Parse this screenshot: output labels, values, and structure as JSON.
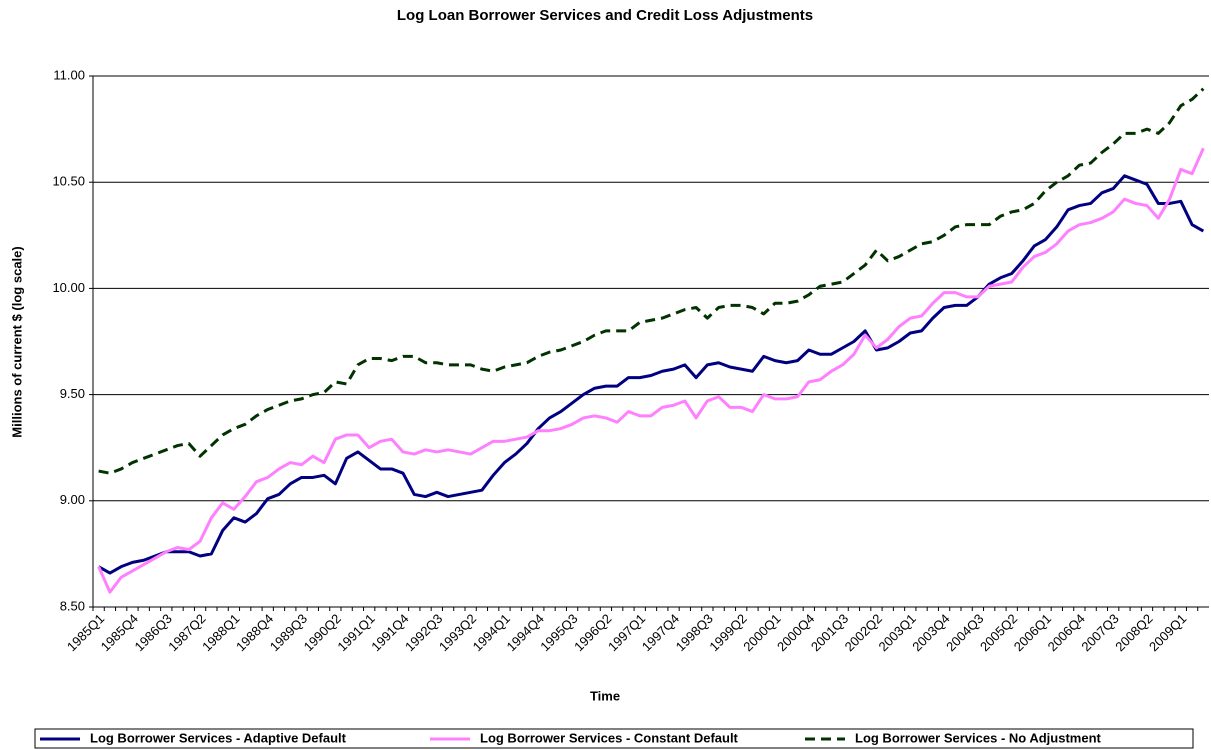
{
  "chart_data": {
    "type": "line",
    "title": "Log Loan Borrower Services and Credit Loss Adjustments",
    "x_label": "Time",
    "y_label": "Millions of current $ (log scale)",
    "categories": [
      "1985Q1",
      null,
      null,
      "1985Q4",
      null,
      null,
      "1986Q3",
      null,
      null,
      "1987Q2",
      null,
      null,
      "1988Q1",
      null,
      null,
      "1988Q4",
      null,
      null,
      "1989Q3",
      null,
      null,
      "1990Q2",
      null,
      null,
      "1991Q1",
      null,
      null,
      "1991Q4",
      null,
      null,
      "1992Q3",
      null,
      null,
      "1993Q2",
      null,
      null,
      "1994Q1",
      null,
      null,
      "1994Q4",
      null,
      null,
      "1995Q3",
      null,
      null,
      "1996Q2",
      null,
      null,
      "1997Q1",
      null,
      null,
      "1997Q4",
      null,
      null,
      "1998Q3",
      null,
      null,
      "1999Q2",
      null,
      null,
      "2000Q1",
      null,
      null,
      "2000Q4",
      null,
      null,
      "2001Q3",
      null,
      null,
      "2002Q2",
      null,
      null,
      "2003Q1",
      null,
      null,
      "2003Q4",
      null,
      null,
      "2004Q3",
      null,
      null,
      "2005Q2",
      null,
      null,
      "2006Q1",
      null,
      null,
      "2006Q4",
      null,
      null,
      "2007Q3",
      null,
      null,
      "2008Q2",
      null,
      null,
      "2009Q1",
      null,
      null
    ],
    "series": [
      {
        "name": "Log Borrower Services - Adaptive Default",
        "color": "#000080",
        "dash": false,
        "values": [
          8.69,
          8.66,
          8.69,
          8.71,
          8.72,
          8.74,
          8.76,
          8.76,
          8.76,
          8.74,
          8.75,
          8.86,
          8.92,
          8.9,
          8.94,
          9.01,
          9.03,
          9.08,
          9.11,
          9.11,
          9.12,
          9.08,
          9.2,
          9.23,
          9.19,
          9.15,
          9.15,
          9.13,
          9.03,
          9.02,
          9.04,
          9.02,
          9.03,
          9.04,
          9.05,
          9.12,
          9.18,
          9.22,
          9.27,
          9.34,
          9.39,
          9.42,
          9.46,
          9.5,
          9.53,
          9.54,
          9.54,
          9.58,
          9.58,
          9.59,
          9.61,
          9.62,
          9.64,
          9.58,
          9.64,
          9.65,
          9.63,
          9.62,
          9.61,
          9.68,
          9.66,
          9.65,
          9.66,
          9.71,
          9.69,
          9.69,
          9.72,
          9.75,
          9.8,
          9.71,
          9.72,
          9.75,
          9.79,
          9.8,
          9.86,
          9.91,
          9.92,
          9.92,
          9.96,
          10.02,
          10.05,
          10.07,
          10.13,
          10.2,
          10.23,
          10.29,
          10.37,
          10.39,
          10.4,
          10.45,
          10.47,
          10.53,
          10.51,
          10.49,
          10.4,
          10.4,
          10.41,
          10.3,
          10.27
        ]
      },
      {
        "name": "Log Borrower Services - Constant Default",
        "color": "#ff80ff",
        "dash": false,
        "values": [
          8.69,
          8.57,
          8.64,
          8.67,
          8.7,
          8.73,
          8.76,
          8.78,
          8.77,
          8.81,
          8.92,
          8.99,
          8.96,
          9.02,
          9.09,
          9.11,
          9.15,
          9.18,
          9.17,
          9.21,
          9.18,
          9.29,
          9.31,
          9.31,
          9.25,
          9.28,
          9.29,
          9.23,
          9.22,
          9.24,
          9.23,
          9.24,
          9.23,
          9.22,
          9.25,
          9.28,
          9.28,
          9.29,
          9.3,
          9.33,
          9.33,
          9.34,
          9.36,
          9.39,
          9.4,
          9.39,
          9.37,
          9.42,
          9.4,
          9.4,
          9.44,
          9.45,
          9.47,
          9.39,
          9.47,
          9.49,
          9.44,
          9.44,
          9.42,
          9.5,
          9.48,
          9.48,
          9.49,
          9.56,
          9.57,
          9.61,
          9.64,
          9.69,
          9.78,
          9.72,
          9.76,
          9.82,
          9.86,
          9.87,
          9.93,
          9.98,
          9.98,
          9.96,
          9.96,
          10.01,
          10.02,
          10.03,
          10.1,
          10.15,
          10.17,
          10.21,
          10.27,
          10.3,
          10.31,
          10.33,
          10.36,
          10.42,
          10.4,
          10.39,
          10.33,
          10.42,
          10.56,
          10.54,
          10.66
        ]
      },
      {
        "name": "Log Borrower Services - No Adjustment",
        "color": "#003300",
        "dash": true,
        "values": [
          9.14,
          9.13,
          9.15,
          9.18,
          9.2,
          9.22,
          9.24,
          9.26,
          9.27,
          9.21,
          9.26,
          9.31,
          9.34,
          9.36,
          9.4,
          9.43,
          9.45,
          9.47,
          9.48,
          9.5,
          9.51,
          9.56,
          9.55,
          9.64,
          9.67,
          9.67,
          9.66,
          9.68,
          9.68,
          9.65,
          9.65,
          9.64,
          9.64,
          9.64,
          9.62,
          9.61,
          9.63,
          9.64,
          9.65,
          9.68,
          9.7,
          9.71,
          9.73,
          9.75,
          9.78,
          9.8,
          9.8,
          9.8,
          9.84,
          9.85,
          9.86,
          9.88,
          9.9,
          9.91,
          9.86,
          9.91,
          9.92,
          9.92,
          9.91,
          9.88,
          9.93,
          9.93,
          9.94,
          9.97,
          10.01,
          10.02,
          10.03,
          10.07,
          10.11,
          10.18,
          10.13,
          10.15,
          10.18,
          10.21,
          10.22,
          10.25,
          10.29,
          10.3,
          10.3,
          10.3,
          10.34,
          10.36,
          10.37,
          10.4,
          10.46,
          10.5,
          10.53,
          10.58,
          10.59,
          10.64,
          10.68,
          10.73,
          10.73,
          10.75,
          10.73,
          10.78,
          10.86,
          10.89,
          10.94
        ]
      }
    ],
    "ylim": [
      8.5,
      11
    ],
    "yticks": [
      {
        "value": 8.5,
        "label": "8.50"
      },
      {
        "value": 9,
        "label": "9.00"
      },
      {
        "value": 9.5,
        "label": "9.50"
      },
      {
        "value": 10,
        "label": "10.00"
      },
      {
        "value": 10.5,
        "label": "10.50"
      },
      {
        "value": 11,
        "label": "11.00"
      }
    ],
    "grid": true,
    "legend": "bottom"
  }
}
